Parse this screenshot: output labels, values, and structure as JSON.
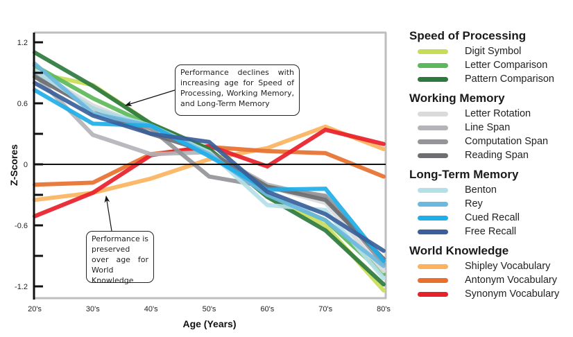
{
  "chart_data": {
    "type": "line",
    "title": "",
    "xlabel": "Age (Years)",
    "ylabel": "Z-Scores",
    "x": [
      "20's",
      "30's",
      "40's",
      "50's",
      "60's",
      "70's",
      "80's"
    ],
    "ylim": [
      -1.2,
      1.2
    ],
    "yticks": [
      1.2,
      0.9,
      0.6,
      0.3,
      0,
      -0.3,
      -0.6,
      -0.9,
      -1.2
    ],
    "ytick_labels": [
      "1.2",
      "",
      "0.6",
      "",
      "0",
      "",
      "-0.6",
      "",
      "-1.2"
    ],
    "grid": false,
    "zero_line": true,
    "legend_placement": "right",
    "groups": [
      {
        "name": "Speed of Processing",
        "series": [
          {
            "name": "Digit Symbol",
            "color": "#c8dc5a",
            "values": [
              0.9,
              0.78,
              0.4,
              0.14,
              -0.3,
              -0.6,
              -1.24
            ]
          },
          {
            "name": "Letter Comparison",
            "color": "#5cb85a",
            "values": [
              0.97,
              0.65,
              0.38,
              0.15,
              -0.3,
              -0.55,
              -1.08
            ]
          },
          {
            "name": "Pattern Comparison",
            "color": "#2e7a3e",
            "values": [
              1.1,
              0.77,
              0.4,
              0.15,
              -0.32,
              -0.65,
              -1.18
            ]
          }
        ]
      },
      {
        "name": "Working Memory",
        "series": [
          {
            "name": "Letter Rotation",
            "color": "#d9dadc",
            "values": [
              0.92,
              0.58,
              0.35,
              0.12,
              -0.22,
              -0.38,
              -1.05
            ]
          },
          {
            "name": "Line Span",
            "color": "#b3b4b7",
            "values": [
              0.88,
              0.29,
              0.1,
              0.12,
              -0.2,
              -0.33,
              -0.95
            ]
          },
          {
            "name": "Computation Span",
            "color": "#939598",
            "values": [
              0.9,
              0.55,
              0.35,
              -0.12,
              -0.22,
              -0.31,
              -0.98
            ]
          },
          {
            "name": "Reading Span",
            "color": "#6d6e71",
            "values": [
              0.86,
              0.55,
              0.3,
              0.12,
              -0.22,
              -0.35,
              -0.93
            ]
          }
        ]
      },
      {
        "name": "Long-Term Memory",
        "series": [
          {
            "name": "Benton",
            "color": "#b5e0e8",
            "values": [
              0.92,
              0.55,
              0.38,
              0.12,
              -0.4,
              -0.45,
              -1.12
            ]
          },
          {
            "name": "Rey",
            "color": "#6bb8e0",
            "values": [
              0.99,
              0.5,
              0.38,
              0.1,
              -0.3,
              -0.55,
              -1.0
            ]
          },
          {
            "name": "Cued Recall",
            "color": "#1faee8",
            "values": [
              0.73,
              0.4,
              0.38,
              0.08,
              -0.25,
              -0.24,
              -0.95
            ]
          },
          {
            "name": "Free Recall",
            "color": "#3a5f9a",
            "values": [
              0.8,
              0.48,
              0.3,
              0.22,
              -0.27,
              -0.49,
              -0.85
            ]
          }
        ]
      },
      {
        "name": "World Knowledge",
        "series": [
          {
            "name": "Shipley Vocabulary",
            "color": "#fbb35e",
            "values": [
              -0.35,
              -0.28,
              -0.14,
              0.05,
              0.16,
              0.37,
              0.15
            ]
          },
          {
            "name": "Antonym Vocabulary",
            "color": "#e8702e",
            "values": [
              -0.2,
              -0.18,
              0.1,
              0.17,
              0.13,
              0.11,
              -0.12
            ]
          },
          {
            "name": "Synonym Vocabulary",
            "color": "#e8202a",
            "values": [
              -0.51,
              -0.28,
              0.09,
              0.18,
              -0.02,
              0.34,
              0.2
            ]
          }
        ]
      }
    ],
    "annotations": [
      {
        "text": "Performance declines with increasing age for Speed of Processing, Working Memory, and Long-Term Memory"
      },
      {
        "text": "Performance is preserved over age for World Knowledge"
      }
    ]
  }
}
